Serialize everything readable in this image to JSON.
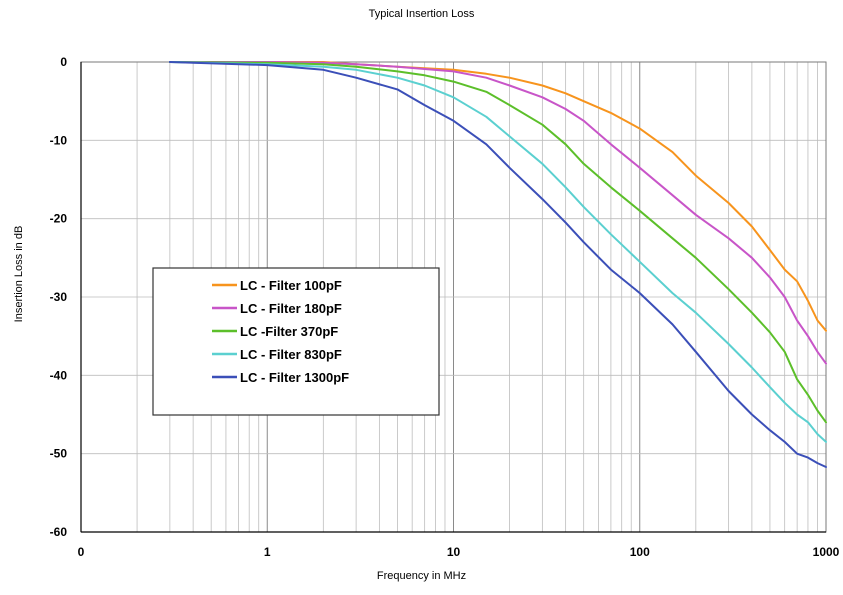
{
  "chart_data": {
    "type": "line",
    "title": "Typical Insertion Loss",
    "xlabel": "Frequency in MHz",
    "ylabel": "Insertion Loss in dB",
    "xscale": "log",
    "xlim": [
      0.1,
      1000
    ],
    "ylim": [
      -60,
      0
    ],
    "x_tick_labels": [
      "0",
      "1",
      "10",
      "100",
      "1000"
    ],
    "y_tick_labels": [
      "0",
      "-10",
      "-20",
      "-30",
      "-40",
      "-50",
      "-60"
    ],
    "grid": true,
    "legend_position": "center-left",
    "series": [
      {
        "name": "LC - Filter 100pF",
        "color": "#f7941d",
        "x": [
          0.3,
          1,
          2,
          3,
          5,
          7,
          10,
          15,
          20,
          30,
          40,
          50,
          70,
          100,
          150,
          200,
          300,
          400,
          500,
          600,
          700,
          800,
          900,
          1000
        ],
        "y": [
          0,
          0,
          0,
          -0.3,
          -0.6,
          -0.8,
          -1,
          -1.5,
          -2,
          -3,
          -4,
          -5,
          -6.5,
          -8.5,
          -11.5,
          -14.5,
          -18,
          -21,
          -24,
          -26.5,
          -28,
          -30.5,
          -33,
          -34.3
        ]
      },
      {
        "name": "LC - Filter 180pF",
        "color": "#c855c8",
        "x": [
          0.3,
          1,
          2,
          3,
          5,
          7,
          10,
          15,
          20,
          30,
          40,
          50,
          70,
          100,
          150,
          200,
          300,
          400,
          500,
          600,
          700,
          800,
          900,
          1000
        ],
        "y": [
          0,
          0,
          -0.1,
          -0.3,
          -0.6,
          -0.9,
          -1.2,
          -2,
          -3,
          -4.5,
          -6,
          -7.5,
          -10.5,
          -13.5,
          -17,
          -19.5,
          -22.5,
          -25,
          -27.5,
          -30,
          -33,
          -35,
          -37,
          -38.5
        ]
      },
      {
        "name": "LC -Filter 370pF",
        "color": "#5cbf2a",
        "x": [
          0.3,
          1,
          2,
          3,
          5,
          7,
          10,
          15,
          20,
          30,
          40,
          50,
          70,
          100,
          150,
          200,
          300,
          400,
          500,
          600,
          700,
          800,
          900,
          1000
        ],
        "y": [
          0,
          -0.1,
          -0.3,
          -0.6,
          -1.2,
          -1.7,
          -2.5,
          -3.8,
          -5.5,
          -8,
          -10.5,
          -13,
          -16,
          -19,
          -22.5,
          -25,
          -29,
          -32,
          -34.5,
          -37,
          -40.5,
          -42.5,
          -44.5,
          -46
        ]
      },
      {
        "name": "LC - Filter 830pF",
        "color": "#5bd0d0",
        "x": [
          0.3,
          1,
          2,
          3,
          5,
          7,
          10,
          15,
          20,
          30,
          40,
          50,
          70,
          100,
          150,
          200,
          300,
          400,
          500,
          600,
          700,
          800,
          900,
          1000
        ],
        "y": [
          0,
          -0.3,
          -0.6,
          -1,
          -2,
          -3,
          -4.5,
          -7,
          -9.5,
          -13,
          -16,
          -18.5,
          -22,
          -25.5,
          -29.5,
          -32,
          -36,
          -39,
          -41.5,
          -43.5,
          -45,
          -46,
          -47.5,
          -48.5
        ]
      },
      {
        "name": "LC - Filter 1300pF",
        "color": "#3b4fb8",
        "x": [
          0.3,
          1,
          2,
          3,
          5,
          7,
          10,
          15,
          20,
          30,
          40,
          50,
          70,
          100,
          150,
          200,
          300,
          400,
          500,
          600,
          700,
          800,
          900,
          1000
        ],
        "y": [
          0,
          -0.4,
          -1,
          -2,
          -3.5,
          -5.5,
          -7.5,
          -10.5,
          -13.5,
          -17.5,
          -20.5,
          -23,
          -26.5,
          -29.5,
          -33.5,
          -37,
          -42,
          -45,
          -47,
          -48.5,
          -50,
          -50.5,
          -51.2,
          -51.7
        ]
      }
    ]
  }
}
